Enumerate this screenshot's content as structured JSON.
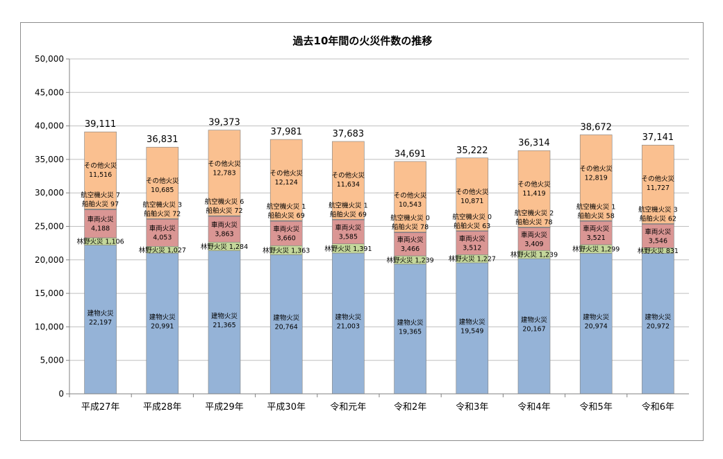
{
  "chart_data": {
    "type": "bar",
    "stacked": true,
    "title": "過去10年間の火災件数の推移",
    "xlabel": "",
    "ylabel": "",
    "ylim": [
      0,
      50000
    ],
    "yticks": [
      0,
      5000,
      10000,
      15000,
      20000,
      25000,
      30000,
      35000,
      40000,
      45000,
      50000
    ],
    "ytick_labels": [
      "0",
      "5,000",
      "10,000",
      "15,000",
      "20,000",
      "25,000",
      "30,000",
      "35,000",
      "40,000",
      "45,000",
      "50,000"
    ],
    "grid": true,
    "categories": [
      "平成27年",
      "平成28年",
      "平成29年",
      "平成30年",
      "令和元年",
      "令和2年",
      "令和3年",
      "令和4年",
      "令和5年",
      "令和6年"
    ],
    "totals": [
      39111,
      36831,
      39373,
      37981,
      37683,
      34691,
      35222,
      36314,
      38672,
      37141
    ],
    "total_labels": [
      "39,111",
      "36,831",
      "39,373",
      "37,981",
      "37,683",
      "34,691",
      "35,222",
      "36,314",
      "38,672",
      "37,141"
    ],
    "series": [
      {
        "name": "建物火災",
        "color": "#95B3D7",
        "values": [
          22197,
          20991,
          21365,
          20764,
          21003,
          19365,
          19549,
          20167,
          20974,
          20972
        ],
        "value_labels": [
          "22,197",
          "20,991",
          "21,365",
          "20,764",
          "21,003",
          "19,365",
          "19,549",
          "20,167",
          "20,974",
          "20,972"
        ]
      },
      {
        "name": "林野火災",
        "color": "#C4D79B",
        "values": [
          1106,
          1027,
          1284,
          1363,
          1391,
          1239,
          1227,
          1239,
          1299,
          831
        ],
        "value_labels": [
          "1,106",
          "1,027",
          "1,284",
          "1,363",
          "1,391",
          "1,239",
          "1,227",
          "1,239",
          "1,299",
          "831"
        ]
      },
      {
        "name": "車両火災",
        "color": "#DA9694",
        "values": [
          4188,
          4053,
          3863,
          3660,
          3585,
          3466,
          3512,
          3409,
          3521,
          3546
        ],
        "value_labels": [
          "4,188",
          "4,053",
          "3,863",
          "3,660",
          "3,585",
          "3,466",
          "3,512",
          "3,409",
          "3,521",
          "3,546"
        ]
      },
      {
        "name": "船舶火災",
        "color": "#8064A2",
        "values": [
          97,
          72,
          72,
          69,
          69,
          78,
          63,
          78,
          58,
          62
        ],
        "value_labels": [
          "97",
          "72",
          "72",
          "69",
          "69",
          "78",
          "63",
          "78",
          "58",
          "62"
        ]
      },
      {
        "name": "航空機火災",
        "color": "#4F81BD",
        "values": [
          7,
          3,
          6,
          1,
          1,
          0,
          0,
          2,
          1,
          3
        ],
        "value_labels": [
          "7",
          "3",
          "6",
          "1",
          "1",
          "0",
          "0",
          "2",
          "1",
          "3"
        ]
      },
      {
        "name": "その他火災",
        "color": "#FAC090",
        "values": [
          11516,
          10685,
          12783,
          12124,
          11634,
          10543,
          10871,
          11419,
          12819,
          11727
        ],
        "value_labels": [
          "11,516",
          "10,685",
          "12,783",
          "12,124",
          "11,634",
          "10,543",
          "10,871",
          "11,419",
          "12,819",
          "11,727"
        ]
      }
    ]
  }
}
